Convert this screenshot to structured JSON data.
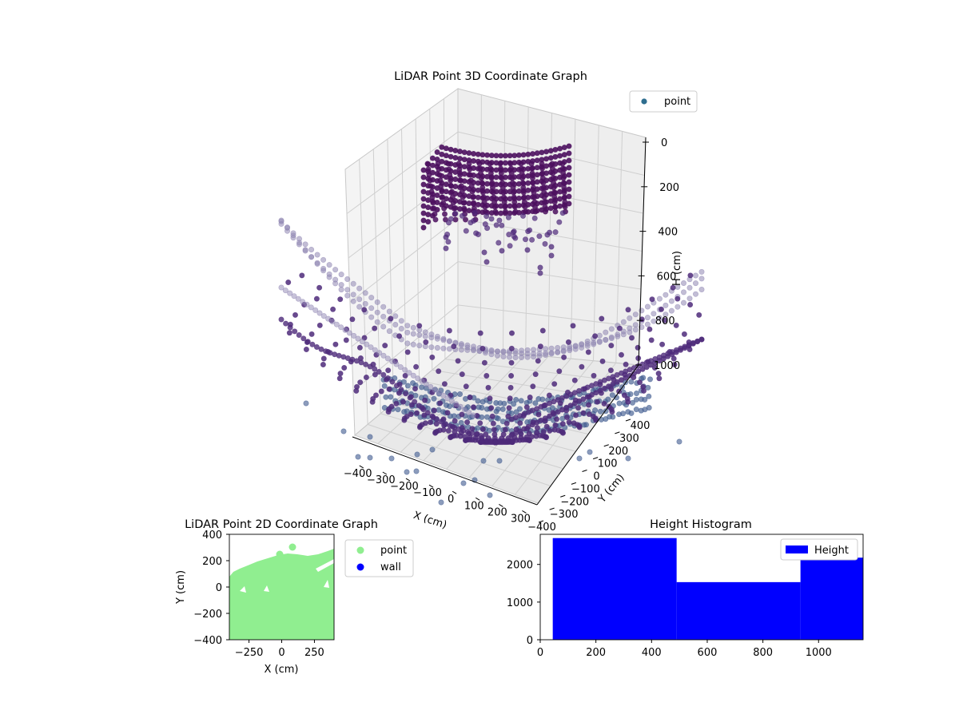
{
  "colors": {
    "point3d_top": "#4b0f5e",
    "point3d_mid": "#4e2a7a",
    "point3d_floor": "#3f5a8f",
    "point3d_light": "#8f86b3",
    "pane": "#f2f2f2",
    "legend_3d_marker": "#2f6e8f",
    "point2d": "#90ee90",
    "wall": "#0000ff",
    "hist": "#0000ff"
  },
  "chart_data": [
    {
      "type": "scatter",
      "title": "LiDAR Point 3D Coordinate Graph",
      "xlabel": "X (cm)",
      "ylabel": "Y (cm)",
      "zlabel": "H (cm)",
      "x_ticks": [
        "−400",
        "−300",
        "−200",
        "−100",
        "0",
        "100",
        "200",
        "300"
      ],
      "y_ticks": [
        "−400",
        "−300",
        "−200",
        "−100",
        "0",
        "100",
        "200",
        "300",
        "400"
      ],
      "z_ticks": [
        "0",
        "200",
        "400",
        "600",
        "800",
        "1000"
      ],
      "z_inverted": true,
      "legend": [
        "point"
      ],
      "legend_position": "upper right",
      "grid": true,
      "series": [
        {
          "name": "point",
          "description_points": "dense arcs of LiDAR returns: ceiling cluster near H 0–400, floor bowl near H 1000"
        }
      ]
    },
    {
      "type": "scatter",
      "title": "LiDAR Point 2D Coordinate Graph",
      "xlabel": "X (cm)",
      "ylabel": "Y (cm)",
      "xlim": [
        -400,
        400
      ],
      "ylim": [
        -400,
        400
      ],
      "x_ticks": [
        "−250",
        "0",
        "250"
      ],
      "y_ticks": [
        "400",
        "200",
        "0",
        "−200",
        "−400"
      ],
      "legend": [
        "point",
        "wall"
      ],
      "legend_position": "outside right",
      "series": [
        {
          "name": "point",
          "region": "filled area of points, top edge near Y 200–250"
        },
        {
          "name": "wall",
          "values": []
        }
      ]
    },
    {
      "type": "bar",
      "title": "Height Histogram",
      "xlim": [
        0,
        1160
      ],
      "ylim": [
        0,
        2800
      ],
      "x_ticks": [
        "0",
        "200",
        "400",
        "600",
        "800",
        "1000"
      ],
      "y_ticks": [
        "0",
        "1000",
        "2000"
      ],
      "legend": [
        "Height"
      ],
      "legend_position": "upper right",
      "bins": [
        {
          "from": 45,
          "to": 490,
          "count": 2700
        },
        {
          "from": 490,
          "to": 935,
          "count": 1530
        },
        {
          "from": 935,
          "to": 1160,
          "count": 2180
        }
      ]
    }
  ]
}
